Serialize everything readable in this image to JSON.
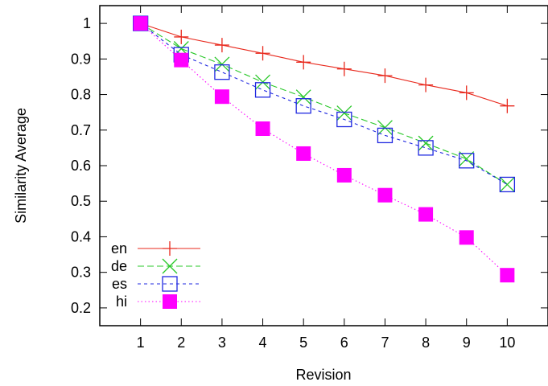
{
  "chart_data": {
    "type": "line",
    "xlabel": "Revision",
    "ylabel": "Similarity Average",
    "x": [
      1,
      2,
      3,
      4,
      5,
      6,
      7,
      8,
      9,
      10
    ],
    "xlim": [
      0,
      11
    ],
    "ylim": [
      0.15,
      1.05
    ],
    "xticks": [
      1,
      2,
      3,
      4,
      5,
      6,
      7,
      8,
      9,
      10
    ],
    "yticks": [
      0.2,
      0.3,
      0.4,
      0.5,
      0.6,
      0.7,
      0.8,
      0.9,
      1
    ],
    "ytick_labels": [
      "0.2",
      "0.3",
      "0.4",
      "0.5",
      "0.6",
      "0.7",
      "0.8",
      "0.9",
      "1"
    ],
    "grid": false,
    "legend_position": "bottom-left",
    "series": [
      {
        "name": "en",
        "color": "#e8281c",
        "marker": "plus",
        "dash": "solid",
        "values": [
          1.0,
          0.962,
          0.939,
          0.916,
          0.891,
          0.872,
          0.853,
          0.827,
          0.805,
          0.768
        ]
      },
      {
        "name": "de",
        "color": "#28c828",
        "marker": "cross",
        "dash": "dashed",
        "values": [
          1.0,
          0.929,
          0.885,
          0.835,
          0.793,
          0.748,
          0.707,
          0.663,
          0.619,
          0.547
        ]
      },
      {
        "name": "es",
        "color": "#1f28e0",
        "marker": "open-square",
        "dash": "short-dashed",
        "values": [
          1.0,
          0.912,
          0.863,
          0.813,
          0.768,
          0.73,
          0.685,
          0.65,
          0.614,
          0.547
        ]
      },
      {
        "name": "hi",
        "color": "#ff00ff",
        "marker": "filled-square",
        "dash": "dotted",
        "values": [
          1.0,
          0.897,
          0.794,
          0.704,
          0.634,
          0.573,
          0.517,
          0.463,
          0.398,
          0.292
        ]
      }
    ]
  }
}
